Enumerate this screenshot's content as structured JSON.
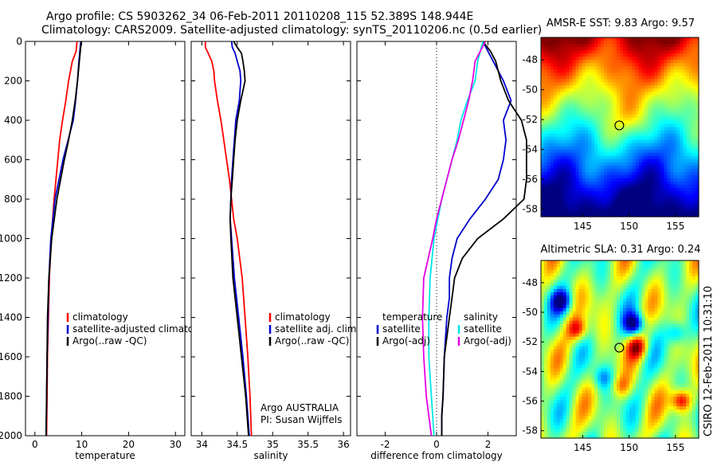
{
  "header": {
    "line1": "Argo profile: CS 5903262_34 06-Feb-2011 20110208_115 52.389S 148.944E",
    "line2": "Climatology: CARS2009. Satellite-adjusted climatology: synTS_20110206.nc (0.5d earlier)"
  },
  "credit": "CSIRO 12-Feb-2011 10:31:10",
  "colors": {
    "red": "#ff0000",
    "blue": "#0000cc",
    "black": "#000000",
    "cyan": "#00e6e6",
    "magenta": "#e600e6"
  },
  "chart_data": [
    {
      "type": "line",
      "name": "temperature",
      "xlabel": "temperature",
      "xlim": [
        -2,
        32
      ],
      "ylim": [
        2000,
        0
      ],
      "xticks": [
        0,
        10,
        20,
        30
      ],
      "yticks": [
        0,
        200,
        400,
        600,
        800,
        1000,
        1200,
        1400,
        1600,
        1800,
        2000
      ],
      "legend": [
        "climatology",
        "satellite-adjusted climatology",
        "Argo(..raw -QC)"
      ],
      "series": [
        {
          "name": "climatology",
          "color": "red",
          "y": [
            0,
            50,
            100,
            200,
            300,
            400,
            500,
            600,
            800,
            1000,
            1200,
            1400,
            1600,
            1800,
            2000
          ],
          "x": [
            9.0,
            8.8,
            8.0,
            7.2,
            6.6,
            5.9,
            5.3,
            4.9,
            4.1,
            3.5,
            3.1,
            2.9,
            2.7,
            2.6,
            2.5
          ]
        },
        {
          "name": "satellite-adjusted climatology",
          "color": "blue",
          "y": [
            0,
            50,
            100,
            200,
            300,
            400,
            500,
            600,
            800,
            1000,
            1200,
            1400,
            1600,
            1800,
            2000
          ],
          "x": [
            9.8,
            9.6,
            9.4,
            9.1,
            8.7,
            8.2,
            7.1,
            6.0,
            4.3,
            3.4,
            3.0,
            2.8,
            2.6,
            2.5,
            2.4
          ]
        },
        {
          "name": "Argo(..raw -QC)",
          "color": "black",
          "y": [
            0,
            50,
            100,
            200,
            300,
            400,
            500,
            600,
            800,
            1000,
            1200,
            1400,
            1600,
            1800,
            2000
          ],
          "x": [
            9.9,
            9.7,
            9.5,
            9.1,
            8.6,
            8.0,
            7.2,
            6.3,
            4.7,
            3.6,
            3.0,
            2.7,
            2.6,
            2.5,
            2.4
          ]
        }
      ]
    },
    {
      "type": "line",
      "name": "salinity",
      "xlabel": "salinity",
      "xlim": [
        33.85,
        36.1
      ],
      "ylim": [
        2000,
        0
      ],
      "xticks": [
        34,
        34.5,
        35,
        35.5,
        36
      ],
      "legend": [
        "climatology",
        "satellite adj. clim.",
        "Argo(..raw -QC)"
      ],
      "annotation": [
        "Argo AUSTRALIA",
        "PI: Susan Wijffels"
      ],
      "series": [
        {
          "name": "climatology",
          "color": "red",
          "y": [
            0,
            30,
            60,
            100,
            150,
            200,
            300,
            400,
            500,
            600,
            700,
            800,
            900,
            1000,
            1200,
            1400,
            1600,
            1800,
            2000
          ],
          "x": [
            34.05,
            34.05,
            34.09,
            34.14,
            34.17,
            34.18,
            34.22,
            34.27,
            34.31,
            34.35,
            34.39,
            34.42,
            34.45,
            34.5,
            34.57,
            34.61,
            34.65,
            34.68,
            34.7
          ]
        },
        {
          "name": "satellite adj. clim.",
          "color": "blue",
          "y": [
            0,
            30,
            60,
            100,
            150,
            200,
            300,
            400,
            500,
            600,
            700,
            800,
            900,
            1000,
            1200,
            1400,
            1600,
            1800,
            2000
          ],
          "x": [
            34.42,
            34.43,
            34.47,
            34.5,
            34.54,
            34.55,
            34.53,
            34.48,
            34.46,
            34.44,
            34.42,
            34.41,
            34.4,
            34.42,
            34.46,
            34.52,
            34.58,
            34.63,
            34.67
          ]
        },
        {
          "name": "Argo(..raw -QC)",
          "color": "black",
          "y": [
            0,
            30,
            60,
            100,
            150,
            200,
            300,
            400,
            500,
            600,
            700,
            800,
            900,
            1000,
            1200,
            1400,
            1600,
            1800,
            2000
          ],
          "x": [
            34.45,
            34.5,
            34.56,
            34.58,
            34.6,
            34.61,
            34.55,
            34.5,
            34.47,
            34.45,
            34.43,
            34.41,
            34.4,
            34.41,
            34.44,
            34.5,
            34.56,
            34.62,
            34.66
          ]
        }
      ]
    },
    {
      "type": "line",
      "name": "difference",
      "xlabel": "difference from climatology",
      "xlim": [
        -3.1,
        3.1
      ],
      "ylim": [
        2000,
        0
      ],
      "xticks": [
        -2,
        0,
        2
      ],
      "legend": {
        "temperature": [
          "temperature",
          "satellite",
          "Argo(-adj)"
        ],
        "salinity": [
          "salinity",
          "satellite",
          "Argo(-adj)"
        ]
      },
      "series": [
        {
          "name": "temperature satellite",
          "color": "blue",
          "y": [
            0,
            50,
            100,
            200,
            300,
            400,
            500,
            600,
            700,
            800,
            900,
            1000,
            1100,
            1200,
            1300,
            1400,
            1600,
            1800,
            1900,
            2000
          ],
          "x": [
            1.8,
            2.0,
            2.2,
            2.6,
            2.9,
            2.6,
            2.7,
            2.6,
            2.4,
            1.9,
            1.3,
            0.8,
            0.6,
            0.5,
            0.5,
            0.4,
            0.3,
            0.25,
            0.2,
            0.2
          ]
        },
        {
          "name": "temperature Argo(-adj)",
          "color": "black",
          "y": [
            0,
            50,
            100,
            200,
            300,
            400,
            500,
            600,
            700,
            800,
            900,
            1000,
            1100,
            1200,
            1300,
            1400,
            1600,
            1800,
            1900,
            2000
          ],
          "x": [
            1.8,
            2.1,
            2.3,
            2.5,
            2.8,
            3.3,
            3.5,
            3.5,
            3.5,
            3.4,
            2.6,
            1.6,
            1.0,
            0.7,
            0.6,
            0.5,
            0.3,
            0.25,
            0.2,
            0.2
          ]
        },
        {
          "name": "salinity satellite",
          "color": "cyan",
          "y": [
            0,
            100,
            200,
            300,
            400,
            500,
            600,
            700,
            800,
            900,
            1000,
            1200,
            1400,
            1600,
            1800,
            2000
          ],
          "x": [
            1.8,
            1.6,
            1.5,
            1.2,
            0.95,
            0.8,
            0.6,
            0.4,
            0.2,
            0.05,
            -0.1,
            -0.25,
            -0.3,
            -0.3,
            -0.2,
            -0.1
          ]
        },
        {
          "name": "salinity Argo(-adj)",
          "color": "magenta",
          "y": [
            0,
            100,
            200,
            300,
            400,
            500,
            600,
            700,
            800,
            900,
            1000,
            1200,
            1400,
            1600,
            1800,
            2000
          ],
          "x": [
            1.9,
            1.5,
            1.4,
            1.25,
            1.05,
            0.85,
            0.6,
            0.4,
            0.2,
            0.0,
            -0.15,
            -0.5,
            -0.55,
            -0.5,
            -0.4,
            -0.2
          ]
        }
      ]
    },
    {
      "type": "heatmap",
      "title": "AMSR-E SST: 9.83 Argo: 9.57",
      "xticks": [
        145,
        150,
        155
      ],
      "yticks": [
        -48,
        -50,
        -52,
        -54,
        -56,
        -58
      ],
      "xlim": [
        140.5,
        157.5
      ],
      "ylim": [
        -58.5,
        -46.5
      ],
      "marker": {
        "lon": 148.944,
        "lat": -52.389
      }
    },
    {
      "type": "heatmap",
      "title": "Altimetric SLA: 0.31 Argo: 0.24",
      "xticks": [
        145,
        150,
        155
      ],
      "yticks": [
        -48,
        -50,
        -52,
        -54,
        -56,
        -58
      ],
      "xlim": [
        140.5,
        157.5
      ],
      "ylim": [
        -58.5,
        -46.5
      ],
      "marker": {
        "lon": 148.944,
        "lat": -52.389
      }
    }
  ]
}
